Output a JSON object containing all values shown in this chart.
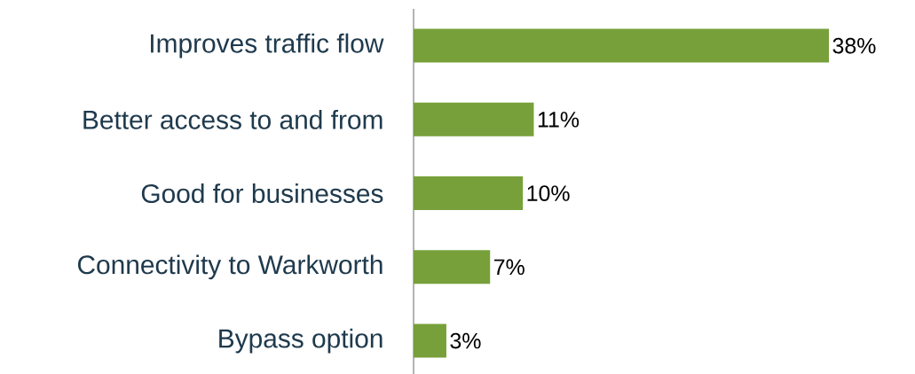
{
  "chart_data": {
    "type": "bar",
    "orientation": "horizontal",
    "categories": [
      "Improves traffic flow",
      "Better access to and from",
      "Good for businesses",
      "Connectivity to Warkworth",
      "Bypass option"
    ],
    "values": [
      38,
      11,
      10,
      7,
      3
    ],
    "value_labels": [
      "38%",
      "11%",
      "10%",
      "7%",
      "3%"
    ],
    "color": "#77a03a"
  }
}
